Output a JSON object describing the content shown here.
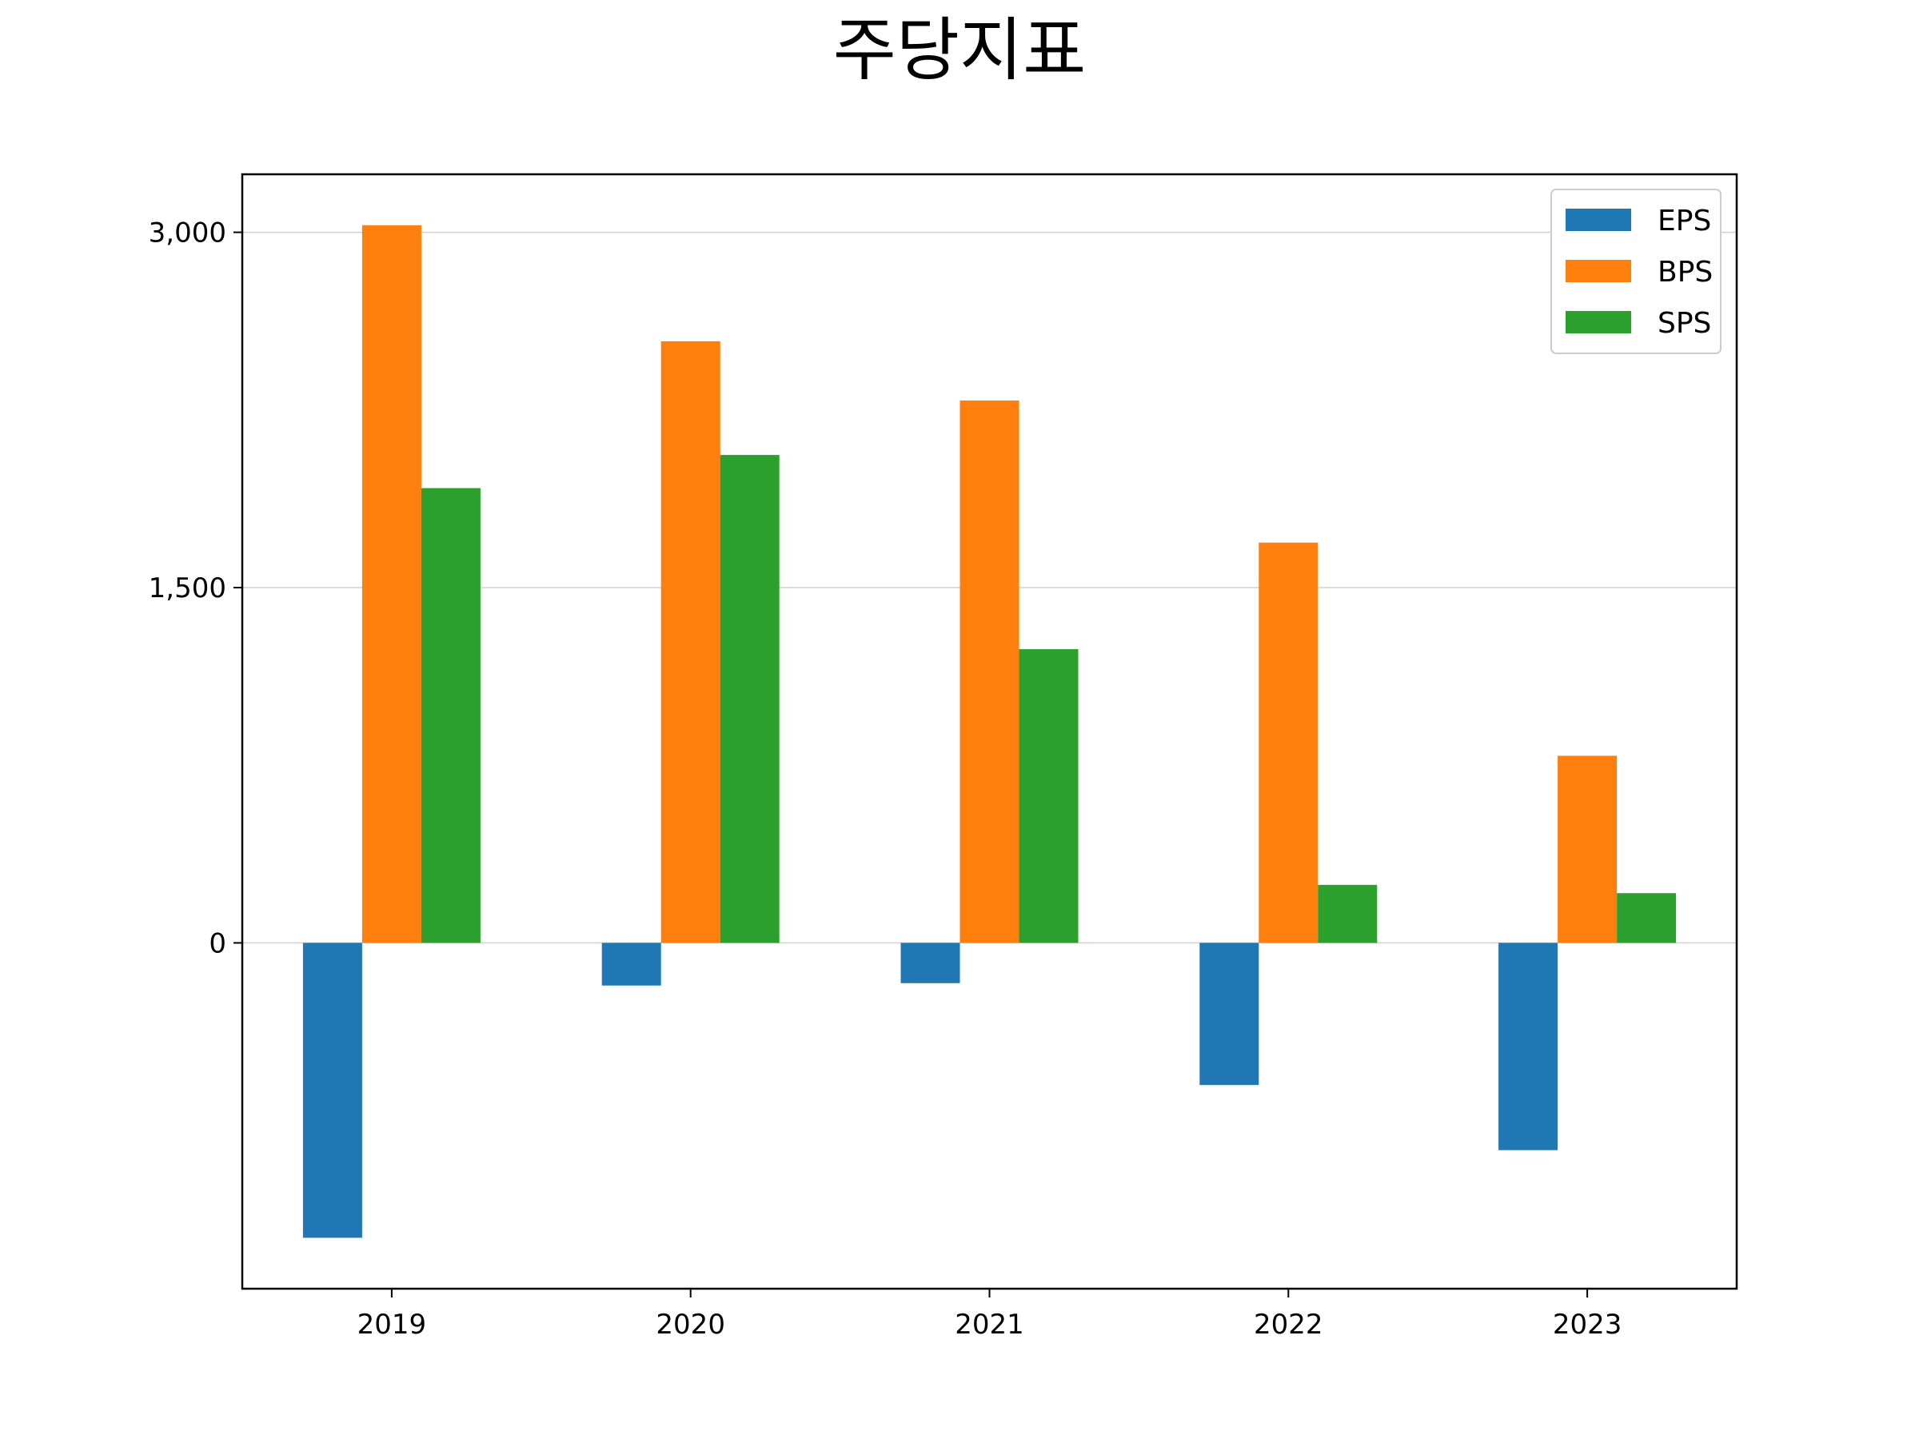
{
  "chart_data": {
    "type": "bar",
    "title": "주당지표",
    "xlabel": "",
    "ylabel": "",
    "categories": [
      "2019",
      "2020",
      "2021",
      "2022",
      "2023"
    ],
    "series": [
      {
        "name": "EPS",
        "color": "#1f77b4",
        "values": [
          -1245,
          -180,
          -170,
          -600,
          -875
        ]
      },
      {
        "name": "BPS",
        "color": "#ff7f0e",
        "values": [
          3030,
          2540,
          2290,
          1690,
          790
        ]
      },
      {
        "name": "SPS",
        "color": "#2ca02c",
        "values": [
          1920,
          2060,
          1240,
          245,
          210
        ]
      }
    ],
    "ylim": [
      -1460,
      3245
    ],
    "yticks": [
      0,
      1500,
      3000
    ],
    "ytick_labels": [
      "0",
      "1,500",
      "3,000"
    ],
    "grid": "horizontal",
    "legend_position": "top-right"
  }
}
